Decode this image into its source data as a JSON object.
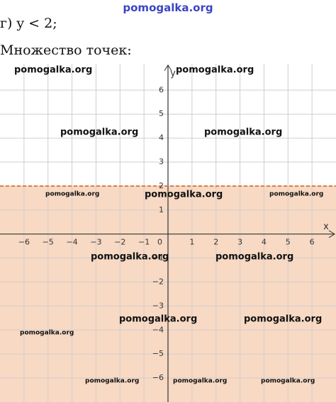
{
  "site": "pomogalka.org",
  "task": "г) y < 2;",
  "answer": "Множество точек:",
  "chart_data": {
    "type": "region",
    "inequality": "<",
    "boundary": 2,
    "region_color": "#f8d9c3",
    "boundary_color": "#e07a3a",
    "xlim": [
      -7,
      7
    ],
    "ylim": [
      -7,
      7.1
    ],
    "xlabel": "x",
    "ylabel": "y",
    "origin_label": "0",
    "xticks": [
      {
        "value": -6,
        "label": "−6"
      },
      {
        "value": -5,
        "label": "−5"
      },
      {
        "value": -4,
        "label": "−4"
      },
      {
        "value": -3,
        "label": "−3"
      },
      {
        "value": -2,
        "label": "−2"
      },
      {
        "value": -1,
        "label": "−1"
      },
      1,
      2,
      3,
      4,
      5,
      6
    ],
    "yticks": [
      {
        "value": -6,
        "label": "−6"
      },
      {
        "value": -5,
        "label": "−5"
      },
      {
        "value": -4,
        "label": "−4"
      },
      {
        "value": -3,
        "label": "−3"
      },
      {
        "value": -2,
        "label": "−2"
      },
      {
        "value": -1,
        "label": "−1"
      },
      1,
      2,
      3,
      4,
      5,
      6
    ],
    "grid": true,
    "watermarks": [
      "pomogalka.org",
      "pomogalka.org",
      "pomogalka.org",
      "pomogalka.org",
      "pomogalka.org",
      "pomogalka.org",
      "pomogalka.org",
      "pomogalka.org",
      "pomogalka.org",
      "pomogalka.org",
      "pomogalka.org",
      "pomogalka.org",
      "pomogalka.org",
      "pomogalka.org",
      "pomogalka.org"
    ]
  }
}
